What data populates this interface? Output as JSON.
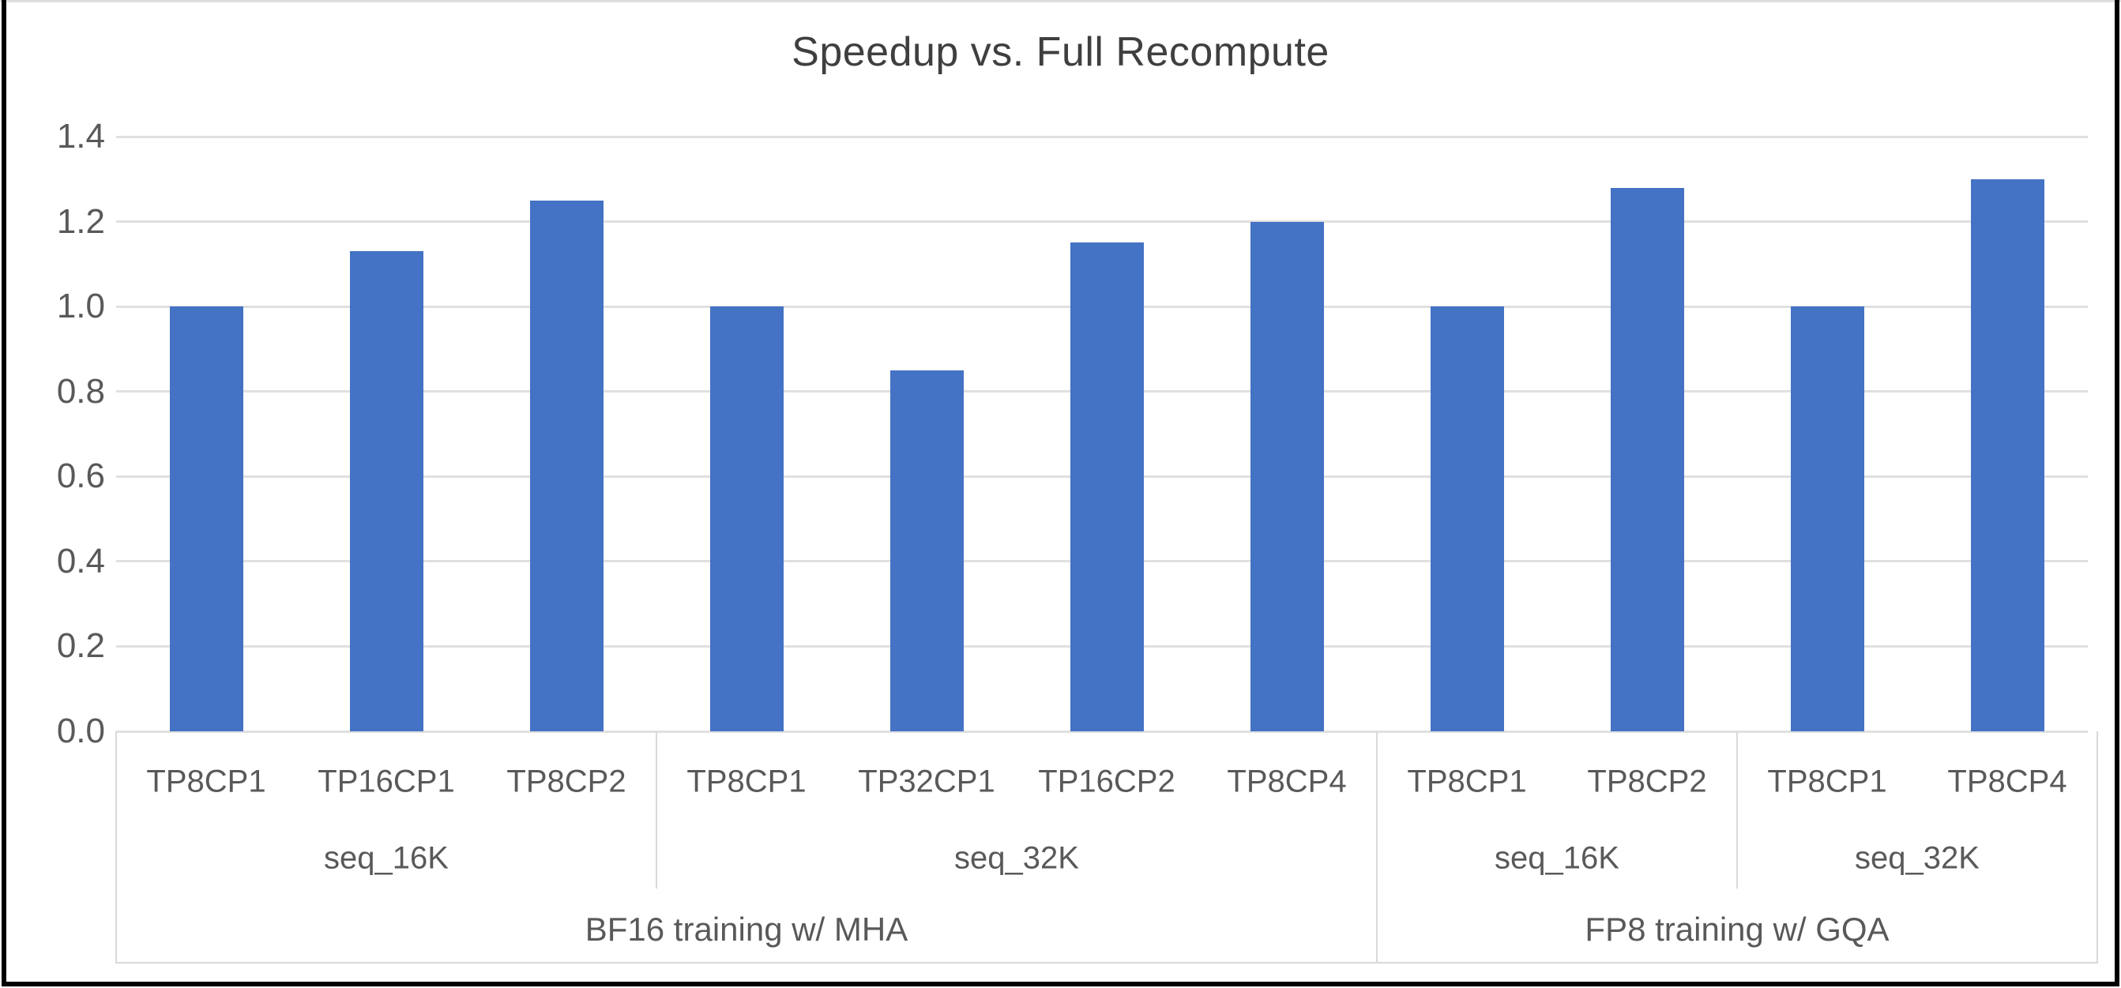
{
  "chart_data": {
    "type": "bar",
    "title": "Speedup vs. Full Recompute",
    "bar_color": "#4472C4",
    "text_color": "#595959",
    "title_color": "#3f3f3f",
    "gridline_color": "#e0e0e0",
    "axis_table_border_color": "#d9d9d9",
    "ylim": [
      0,
      1.4
    ],
    "ytick_labels": [
      "0.0",
      "0.2",
      "0.4",
      "0.6",
      "0.8",
      "1.0",
      "1.2",
      "1.4"
    ],
    "categories": [
      "TP8CP1",
      "TP16CP1",
      "TP8CP2",
      "TP8CP1",
      "TP32CP1",
      "TP16CP2",
      "TP8CP4",
      "TP8CP1",
      "TP8CP2",
      "TP8CP1",
      "TP8CP4"
    ],
    "values": [
      1.0,
      1.13,
      1.25,
      1.0,
      0.85,
      1.15,
      1.2,
      1.0,
      1.28,
      1.0,
      1.3
    ],
    "groups_seq": [
      {
        "label": "seq_16K",
        "span": 3
      },
      {
        "label": "seq_32K",
        "span": 4
      },
      {
        "label": "seq_16K",
        "span": 2
      },
      {
        "label": "seq_32K",
        "span": 2
      }
    ],
    "groups_training": [
      {
        "label": "BF16 training w/ MHA",
        "span": 7
      },
      {
        "label": "FP8 training w/ GQA",
        "span": 4
      }
    ],
    "legend": null,
    "grid": true
  }
}
